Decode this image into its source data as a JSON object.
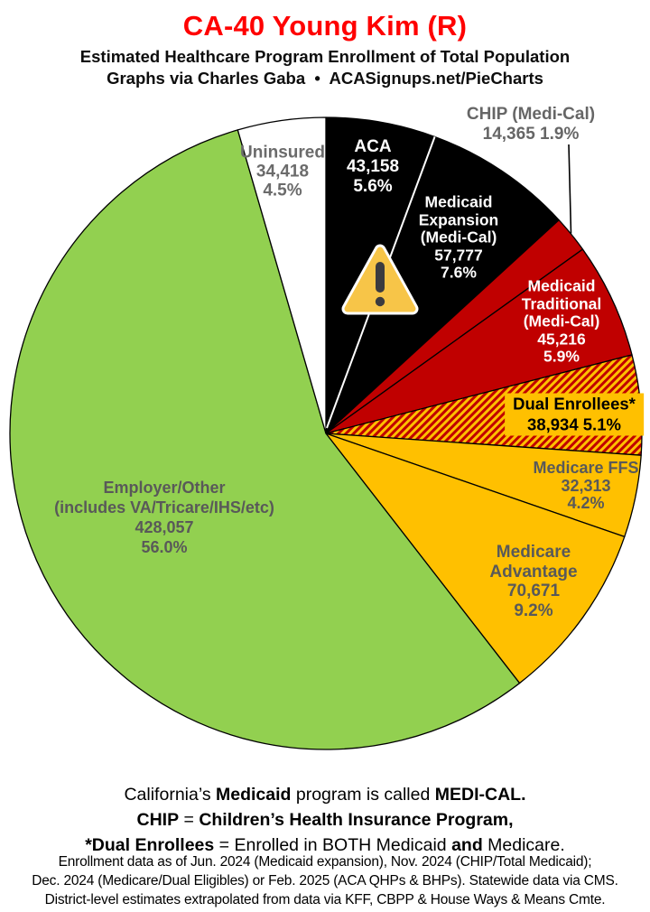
{
  "header": {
    "title": "CA-40 Young Kim (R)",
    "title_color": "#FF0000",
    "subtitle1": "Estimated Healthcare Program Enrollment of Total Population",
    "subtitle2": "Graphs via Charles Gaba  •  ACASignups.net/PieCharts"
  },
  "chart_data": {
    "type": "pie",
    "title": "Estimated Healthcare Program Enrollment of Total Population",
    "start_angle": "12 o'clock",
    "direction": "clockwise",
    "slices": [
      {
        "key": "aca",
        "name": "ACA",
        "value": 43158,
        "pct": 5.6,
        "color": "#000000",
        "label_color": "#FFFFFF",
        "lines": [
          "ACA",
          "43,158",
          "5.6%"
        ]
      },
      {
        "key": "medicaid-expansion",
        "name": "Medicaid Expansion (Medi-Cal)",
        "value": 57777,
        "pct": 7.6,
        "color": "#000000",
        "label_color": "#FFFFFF",
        "lines": [
          "Medicaid",
          "Expansion",
          "(Medi-Cal)",
          "57,777",
          "7.6%"
        ]
      },
      {
        "key": "chip",
        "name": "CHIP (Medi-Cal)",
        "value": 14365,
        "pct": 1.9,
        "color": "#C00000",
        "label_color": "#666666",
        "lines": [
          "CHIP (Medi-Cal)",
          "14,365 1.9%"
        ],
        "label_outside": true
      },
      {
        "key": "medicaid-traditional",
        "name": "Medicaid Traditional (Medi-Cal)",
        "value": 45216,
        "pct": 5.9,
        "color": "#C00000",
        "label_color": "#FFFFFF",
        "lines": [
          "Medicaid",
          "Traditional",
          "(Medi-Cal)",
          "45,216",
          "5.9%"
        ]
      },
      {
        "key": "dual-enrollees",
        "name": "Dual Enrollees*",
        "value": 38934,
        "pct": 5.1,
        "color": "#C00000",
        "hatch": true,
        "hatch_colors": [
          "#C00000",
          "#FFC000"
        ],
        "label_color": "#000000",
        "box_color": "#FFC000",
        "lines": [
          "Dual Enrollees*",
          "38,934 5.1%"
        ]
      },
      {
        "key": "medicare-ffs",
        "name": "Medicare FFS",
        "value": 32313,
        "pct": 4.2,
        "color": "#FFC000",
        "label_color": "#595959",
        "lines": [
          "Medicare FFS",
          "32,313",
          "4.2%"
        ]
      },
      {
        "key": "medicare-advantage",
        "name": "Medicare Advantage",
        "value": 70671,
        "pct": 9.2,
        "color": "#FFC000",
        "label_color": "#595959",
        "lines": [
          "Medicare",
          "Advantage",
          "70,671",
          "9.2%"
        ]
      },
      {
        "key": "employer-other",
        "name": "Employer/Other (includes VA/Tricare/IHS/etc)",
        "value": 428057,
        "pct": 56.0,
        "color": "#92D050",
        "label_color": "#595959",
        "lines": [
          "Employer/Other",
          "(includes VA/Tricare/IHS/etc)",
          "428,057",
          "56.0%"
        ]
      },
      {
        "key": "uninsured",
        "name": "Uninsured",
        "value": 34418,
        "pct": 4.5,
        "color": "#FFFFFF",
        "label_color": "#6b6b6b",
        "lines": [
          "Uninsured",
          "34,418",
          "4.5%"
        ]
      }
    ],
    "warning_icon": {
      "name": "warning-triangle",
      "colors": {
        "fill": "#F7C548",
        "glyph": "#3B3B3F",
        "halo": "#FFFFFF"
      },
      "placed_on": "ACA / Medicaid Expansion boundary"
    }
  },
  "footnotes": {
    "glossary_lines": [
      [
        {
          "t": "California’s ",
          "b": false
        },
        {
          "t": "Medicaid",
          "b": true
        },
        {
          "t": " program is called ",
          "b": false
        },
        {
          "t": "MEDI-CAL.",
          "b": true
        }
      ],
      [
        {
          "t": "CHIP",
          "b": true
        },
        {
          "t": " = ",
          "b": false
        },
        {
          "t": "Children’s Health Insurance Program,",
          "b": true
        }
      ],
      [
        {
          "t": "*Dual Enrollees",
          "b": true
        },
        {
          "t": " = Enrolled in BOTH Medicaid ",
          "b": false
        },
        {
          "t": "and",
          "b": true
        },
        {
          "t": " Medicare.",
          "b": false
        }
      ]
    ],
    "source_lines": [
      "Enrollment data as of Jun. 2024 (Medicaid expansion), Nov. 2024 (CHIP/Total Medicaid);",
      "Dec. 2024 (Medicare/Dual Eligibles) or Feb. 2025 (ACA QHPs & BHPs). Statewide data via CMS.",
      "District-level estimates extrapolated from data via KFF, CBPP & House Ways & Means Cmte."
    ]
  }
}
